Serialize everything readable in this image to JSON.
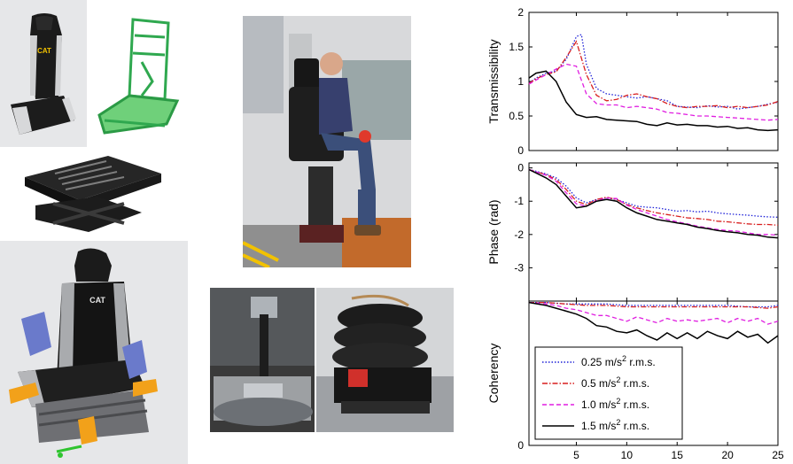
{
  "figure": {
    "photos": {
      "seat_cushion_logo": "CAT",
      "seat_model_logo": "CAT"
    }
  },
  "chart_data": {
    "type": "line",
    "shared_x": {
      "ticks": [
        5,
        10,
        15,
        20,
        25
      ],
      "xlim": [
        0.3,
        25
      ]
    },
    "legend": {
      "placement": "bottom-left of third subplot",
      "entries": [
        {
          "label_pre": "0.25 m/s",
          "sup": "2",
          "label_post": " r.m.s.",
          "color": "#1f22d8",
          "dash": "dotted"
        },
        {
          "label_pre": "0.5 m/s",
          "sup": "2",
          "label_post": " r.m.s.",
          "color": "#d81f1f",
          "dash": "dashdot"
        },
        {
          "label_pre": "1.0 m/s",
          "sup": "2",
          "label_post": " r.m.s.",
          "color": "#e01ee0",
          "dash": "dashed"
        },
        {
          "label_pre": "1.5 m/s",
          "sup": "2",
          "label_post": " r.m.s.",
          "color": "#000000",
          "dash": "solid"
        }
      ]
    },
    "subplots": [
      {
        "ylabel": "Transmissibility",
        "ylim": [
          0,
          2
        ],
        "yticks": [
          "0",
          "0.5",
          "1",
          "1.5",
          "2"
        ],
        "ytick_values": [
          0,
          0.5,
          1,
          1.5,
          2
        ],
        "series": [
          {
            "legend_index": 0,
            "x": [
              0.3,
              1,
              2,
              3,
              4,
              5,
              5.5,
              6,
              7,
              8,
              9,
              10,
              11,
              12,
              13,
              14,
              15,
              16,
              17,
              18,
              19,
              20,
              21,
              22,
              23,
              24,
              25
            ],
            "y": [
              0.98,
              1.05,
              1.12,
              1.15,
              1.32,
              1.65,
              1.68,
              1.25,
              0.9,
              0.82,
              0.8,
              0.78,
              0.76,
              0.78,
              0.75,
              0.72,
              0.64,
              0.63,
              0.62,
              0.65,
              0.63,
              0.64,
              0.6,
              0.62,
              0.64,
              0.67,
              0.7
            ]
          },
          {
            "legend_index": 1,
            "x": [
              0.3,
              1,
              2,
              3,
              4,
              5,
              6,
              7,
              8,
              9,
              10,
              11,
              12,
              13,
              14,
              15,
              16,
              17,
              18,
              19,
              20,
              21,
              22,
              23,
              24,
              25
            ],
            "y": [
              0.97,
              1.04,
              1.1,
              1.14,
              1.35,
              1.58,
              1.1,
              0.8,
              0.72,
              0.74,
              0.8,
              0.82,
              0.78,
              0.75,
              0.68,
              0.64,
              0.62,
              0.64,
              0.64,
              0.65,
              0.62,
              0.64,
              0.62,
              0.64,
              0.66,
              0.71
            ]
          },
          {
            "legend_index": 2,
            "x": [
              0.3,
              1,
              2,
              3,
              4,
              5,
              6,
              7,
              8,
              9,
              10,
              11,
              12,
              13,
              14,
              15,
              16,
              17,
              18,
              19,
              20,
              21,
              22,
              23,
              24,
              25
            ],
            "y": [
              0.96,
              1.02,
              1.1,
              1.18,
              1.25,
              1.22,
              0.82,
              0.68,
              0.66,
              0.66,
              0.62,
              0.64,
              0.62,
              0.6,
              0.55,
              0.54,
              0.52,
              0.5,
              0.5,
              0.49,
              0.48,
              0.47,
              0.46,
              0.45,
              0.44,
              0.45
            ]
          },
          {
            "legend_index": 3,
            "x": [
              0.3,
              1,
              2,
              3,
              4,
              5,
              6,
              7,
              8,
              9,
              10,
              11,
              12,
              13,
              14,
              15,
              16,
              17,
              18,
              19,
              20,
              21,
              22,
              23,
              24,
              25
            ],
            "y": [
              1.05,
              1.12,
              1.15,
              1.0,
              0.7,
              0.52,
              0.48,
              0.49,
              0.45,
              0.44,
              0.43,
              0.42,
              0.38,
              0.36,
              0.4,
              0.37,
              0.38,
              0.36,
              0.36,
              0.34,
              0.35,
              0.32,
              0.33,
              0.3,
              0.29,
              0.3
            ]
          }
        ]
      },
      {
        "ylabel": "Phase (rad)",
        "ylim": [
          -4,
          0.15
        ],
        "yticks": [
          "0",
          "-1",
          "-2",
          "-3"
        ],
        "ytick_values": [
          0,
          -1,
          -2,
          -3
        ],
        "series": [
          {
            "legend_index": 0,
            "x": [
              0.3,
              1,
              2,
              3,
              4,
              5,
              6,
              7,
              8,
              9,
              10,
              11,
              12,
              13,
              14,
              15,
              16,
              17,
              18,
              19,
              20,
              21,
              22,
              23,
              24,
              25
            ],
            "y": [
              -0.05,
              -0.1,
              -0.18,
              -0.3,
              -0.55,
              -0.9,
              -1.05,
              -0.95,
              -0.9,
              -0.95,
              -1.05,
              -1.15,
              -1.18,
              -1.2,
              -1.25,
              -1.3,
              -1.28,
              -1.32,
              -1.3,
              -1.35,
              -1.38,
              -1.4,
              -1.42,
              -1.45,
              -1.47,
              -1.48
            ]
          },
          {
            "legend_index": 1,
            "x": [
              0.3,
              1,
              2,
              3,
              4,
              5,
              6,
              7,
              8,
              9,
              10,
              11,
              12,
              13,
              14,
              15,
              16,
              17,
              18,
              19,
              20,
              21,
              22,
              23,
              24,
              25
            ],
            "y": [
              -0.05,
              -0.12,
              -0.2,
              -0.35,
              -0.65,
              -1.0,
              -1.1,
              -0.95,
              -0.88,
              -0.95,
              -1.1,
              -1.2,
              -1.28,
              -1.35,
              -1.4,
              -1.45,
              -1.5,
              -1.52,
              -1.55,
              -1.6,
              -1.62,
              -1.65,
              -1.68,
              -1.7,
              -1.7,
              -1.72
            ]
          },
          {
            "legend_index": 2,
            "x": [
              0.3,
              1,
              2,
              3,
              4,
              5,
              6,
              7,
              8,
              9,
              10,
              11,
              12,
              13,
              14,
              15,
              16,
              17,
              18,
              19,
              20,
              21,
              22,
              23,
              24,
              25
            ],
            "y": [
              -0.05,
              -0.12,
              -0.22,
              -0.4,
              -0.75,
              -1.08,
              -1.15,
              -0.98,
              -0.9,
              -0.92,
              -1.12,
              -1.25,
              -1.35,
              -1.45,
              -1.55,
              -1.62,
              -1.68,
              -1.75,
              -1.8,
              -1.85,
              -1.88,
              -1.9,
              -1.95,
              -2.0,
              -2.0,
              -2.02
            ]
          },
          {
            "legend_index": 3,
            "x": [
              0.3,
              1,
              2,
              3,
              4,
              5,
              6,
              7,
              8,
              9,
              10,
              11,
              12,
              13,
              14,
              15,
              16,
              17,
              18,
              19,
              20,
              21,
              22,
              23,
              24,
              25
            ],
            "y": [
              -0.05,
              -0.15,
              -0.3,
              -0.5,
              -0.85,
              -1.2,
              -1.15,
              -1.0,
              -0.95,
              -1.0,
              -1.2,
              -1.35,
              -1.45,
              -1.55,
              -1.6,
              -1.65,
              -1.7,
              -1.78,
              -1.82,
              -1.88,
              -1.92,
              -1.95,
              -2.0,
              -2.02,
              -2.08,
              -2.1
            ]
          }
        ]
      },
      {
        "ylabel": "Coherency",
        "ylim": [
          0,
          1
        ],
        "yticks": [
          "0"
        ],
        "ytick_values": [
          0
        ],
        "series": [
          {
            "legend_index": 0,
            "x": [
              0.3,
              2,
              4,
              6,
              8,
              10,
              12,
              14,
              16,
              18,
              20,
              22,
              24,
              25
            ],
            "y": [
              0.99,
              0.99,
              0.98,
              0.98,
              0.98,
              0.97,
              0.97,
              0.97,
              0.97,
              0.97,
              0.97,
              0.96,
              0.96,
              0.97
            ]
          },
          {
            "legend_index": 1,
            "x": [
              0.3,
              2,
              4,
              6,
              8,
              10,
              12,
              14,
              16,
              18,
              20,
              22,
              24,
              25
            ],
            "y": [
              0.99,
              0.99,
              0.98,
              0.97,
              0.97,
              0.96,
              0.96,
              0.96,
              0.96,
              0.96,
              0.96,
              0.96,
              0.95,
              0.96
            ]
          },
          {
            "legend_index": 2,
            "x": [
              0.3,
              2,
              3,
              4,
              5,
              6,
              7,
              8,
              9,
              10,
              11,
              12,
              13,
              14,
              15,
              16,
              17,
              18,
              19,
              20,
              21,
              22,
              23,
              24,
              25
            ],
            "y": [
              0.99,
              0.98,
              0.97,
              0.95,
              0.94,
              0.92,
              0.9,
              0.9,
              0.88,
              0.86,
              0.89,
              0.87,
              0.85,
              0.88,
              0.86,
              0.87,
              0.86,
              0.87,
              0.88,
              0.85,
              0.88,
              0.86,
              0.88,
              0.84,
              0.86
            ]
          },
          {
            "legend_index": 3,
            "x": [
              0.3,
              2,
              3,
              4,
              5,
              6,
              7,
              8,
              9,
              10,
              11,
              12,
              13,
              14,
              15,
              16,
              17,
              18,
              19,
              20,
              21,
              22,
              23,
              24,
              25
            ],
            "y": [
              0.99,
              0.97,
              0.95,
              0.93,
              0.91,
              0.88,
              0.83,
              0.82,
              0.79,
              0.78,
              0.8,
              0.76,
              0.73,
              0.78,
              0.74,
              0.78,
              0.74,
              0.79,
              0.76,
              0.74,
              0.79,
              0.75,
              0.77,
              0.71,
              0.76
            ]
          }
        ]
      }
    ]
  }
}
